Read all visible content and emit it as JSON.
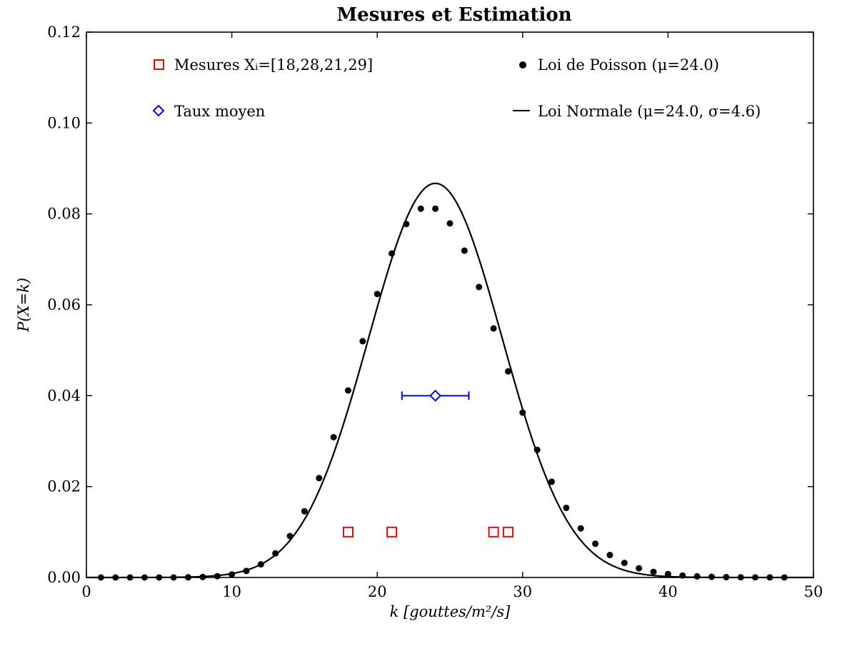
{
  "chart_data": {
    "type": "scatter",
    "title": "Mesures et Estimation",
    "xlabel": "k [gouttes/m²/s]",
    "ylabel": "P(X=k)",
    "xlim": [
      0,
      50
    ],
    "ylim": [
      0,
      0.12
    ],
    "x_ticks": [
      0,
      10,
      20,
      30,
      40,
      50
    ],
    "y_ticks": [
      0.0,
      0.02,
      0.04,
      0.06,
      0.08,
      0.1,
      0.12
    ],
    "x_tick_labels": [
      "0",
      "10",
      "20",
      "30",
      "40",
      "50"
    ],
    "y_tick_labels": [
      "0.00",
      "0.02",
      "0.04",
      "0.06",
      "0.08",
      "0.10",
      "0.12"
    ],
    "legend": {
      "placement": "top",
      "mesures": "Mesures Xᵢ=[18,28,21,29]",
      "taux": "Taux moyen",
      "poisson": "Loi de Poisson (μ=24.0)",
      "normale": "Loi Normale (μ=24.0, σ=4.6)"
    },
    "series": [
      {
        "name": "Mesures",
        "marker": "square",
        "color": "#ff0000",
        "x": [
          18,
          28,
          21,
          29
        ],
        "y": [
          0.01,
          0.01,
          0.01,
          0.01
        ]
      },
      {
        "name": "Taux moyen",
        "marker": "diamond",
        "color": "#0000ff",
        "x": [
          24.0
        ],
        "y": [
          0.04
        ],
        "xerr": [
          2.3
        ]
      },
      {
        "name": "Loi de Poisson",
        "marker": "dot",
        "color": "#000000",
        "mu": 24.0,
        "k_range": [
          1,
          48
        ]
      },
      {
        "name": "Loi Normale",
        "marker": "line",
        "color": "#000000",
        "mu": 24.0,
        "sigma": 4.6,
        "x_range": [
          0,
          50
        ]
      }
    ]
  }
}
